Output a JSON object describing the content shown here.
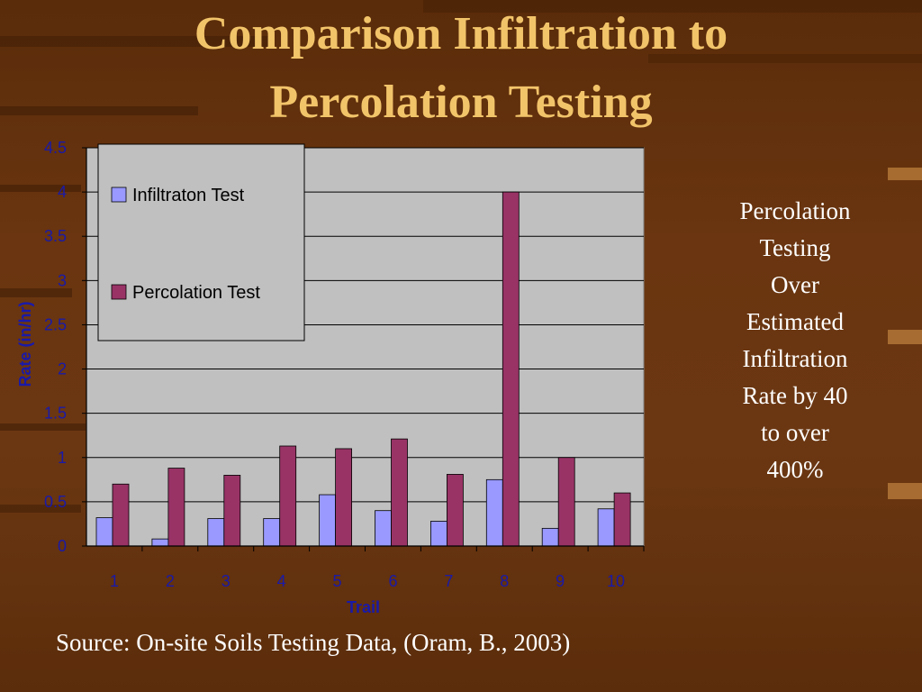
{
  "slide": {
    "title_line1": "Comparison Infiltration to",
    "title_line2": "Percolation Testing",
    "side_note": [
      "Percolation",
      "Testing",
      "Over",
      "Estimated",
      "Infiltration",
      "Rate by 40",
      "to over",
      "400%"
    ],
    "source": "Source: On-site Soils Testing Data, (Oram, B., 2003)"
  },
  "colors": {
    "title": "#f2c46a",
    "plot_bg": "#c0c0c0",
    "infiltration": "#9999ff",
    "percolation": "#993366",
    "axis_text": "#1a1aa8"
  },
  "chart_data": {
    "type": "bar",
    "title": "",
    "xlabel": "Trail",
    "ylabel": "Rate (in/hr)",
    "categories": [
      "1",
      "2",
      "3",
      "4",
      "5",
      "6",
      "7",
      "8",
      "9",
      "10"
    ],
    "ylim": [
      0,
      4.5
    ],
    "yticks": [
      "0",
      "0.5",
      "1",
      "1.5",
      "2",
      "2.5",
      "3",
      "3.5",
      "4",
      "4.5"
    ],
    "grid": true,
    "legend_position": "top-left",
    "series": [
      {
        "name": "Infiltraton Test",
        "values": [
          0.32,
          0.08,
          0.31,
          0.31,
          0.58,
          0.4,
          0.28,
          0.75,
          0.2,
          0.42
        ]
      },
      {
        "name": "Percolation Test",
        "values": [
          0.7,
          0.88,
          0.8,
          1.13,
          1.1,
          1.21,
          0.81,
          4.0,
          1.0,
          0.6
        ]
      }
    ]
  }
}
